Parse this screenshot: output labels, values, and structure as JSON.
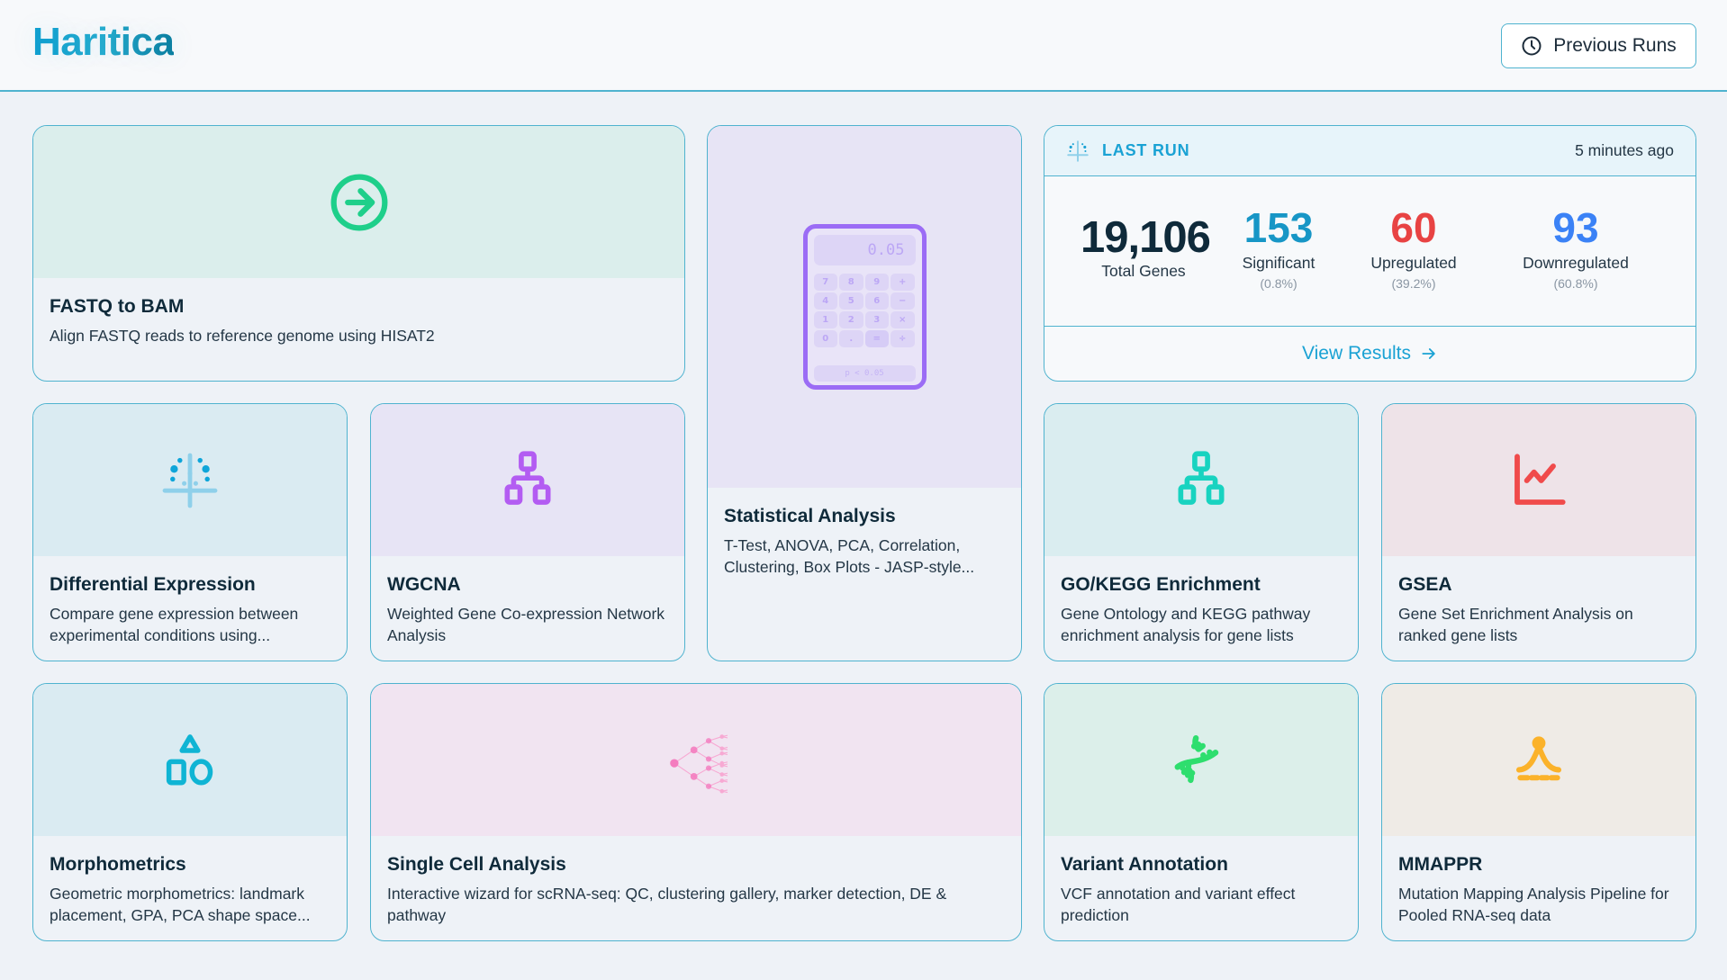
{
  "header": {
    "logo": "Haritica",
    "previous_runs_label": "Previous Runs",
    "previous_runs_icon": "clock-icon"
  },
  "last_run": {
    "label": "LAST RUN",
    "icon": "volcano-plot-icon",
    "time_ago": "5 minutes ago",
    "total_genes": {
      "value": "19,106",
      "label": "Total Genes"
    },
    "significant": {
      "value": "153",
      "label": "Significant",
      "pct": "(0.8%)",
      "color": "#1796c6"
    },
    "upregulated": {
      "value": "60",
      "label": "Upregulated",
      "pct": "(39.2%)",
      "color": "#e84343"
    },
    "downregulated": {
      "value": "93",
      "label": "Downregulated",
      "pct": "(60.8%)",
      "color": "#3b82f6"
    },
    "view_results_label": "View Results"
  },
  "tools": [
    {
      "id": "fastq",
      "title": "FASTQ to BAM",
      "desc": "Align FASTQ reads to reference genome using HISAT2",
      "icon": "arrow-circle-right-icon",
      "bg": "#dbeeec",
      "color": "#1ecf8a"
    },
    {
      "id": "stats",
      "title": "Statistical Analysis",
      "desc": "T-Test, ANOVA, PCA, Correlation, Clustering, Box Plots - JASP-style...",
      "icon": "calculator-icon",
      "bg": "#e7e4f5",
      "color": "#9b6cf5",
      "calculator": {
        "display": "0.05",
        "keys": [
          "7",
          "8",
          "9",
          "+",
          "4",
          "5",
          "6",
          "−",
          "1",
          "2",
          "3",
          "×",
          "0",
          ".",
          "=",
          "÷"
        ],
        "footer": "p < 0.05"
      }
    },
    {
      "id": "de",
      "title": "Differential Expression",
      "desc": "Compare gene expression between experimental conditions using...",
      "icon": "volcano-plot-icon",
      "bg": "#daebf2",
      "color": "#0ea5d9"
    },
    {
      "id": "wgcna",
      "title": "WGCNA",
      "desc": "Weighted Gene Co-expression Network Analysis",
      "icon": "hierarchy-icon",
      "bg": "#e7e4f5",
      "color": "#b35cf2"
    },
    {
      "id": "gokegg",
      "title": "GO/KEGG Enrichment",
      "desc": "Gene Ontology and KEGG pathway enrichment analysis for gene lists",
      "icon": "hierarchy-icon",
      "bg": "#daedf0",
      "color": "#18d3c0"
    },
    {
      "id": "gsea",
      "title": "GSEA",
      "desc": "Gene Set Enrichment Analysis on ranked gene lists",
      "icon": "line-chart-icon",
      "bg": "#eee3e8",
      "color": "#f04b4b"
    },
    {
      "id": "morpho",
      "title": "Morphometrics",
      "desc": "Geometric morphometrics: landmark placement, GPA, PCA shape space...",
      "icon": "shapes-icon",
      "bg": "#daebf2",
      "color": "#0fb4d4"
    },
    {
      "id": "sc",
      "title": "Single Cell Analysis",
      "desc": "Interactive wizard for scRNA-seq: QC, clustering gallery, marker detection, DE & pathway",
      "icon": "tree-branch-icon",
      "bg": "#f1e4f1",
      "color": "#f47cbf"
    },
    {
      "id": "variant",
      "title": "Variant Annotation",
      "desc": "VCF annotation and variant effect prediction",
      "icon": "dna-icon",
      "bg": "#dcefea",
      "color": "#2ede6e"
    },
    {
      "id": "mmappr",
      "title": "MMAPPR",
      "desc": "Mutation Mapping Analysis Pipeline for Pooled RNA-seq data",
      "icon": "peak-icon",
      "bg": "#efebe6",
      "color": "#fbb22a"
    }
  ]
}
